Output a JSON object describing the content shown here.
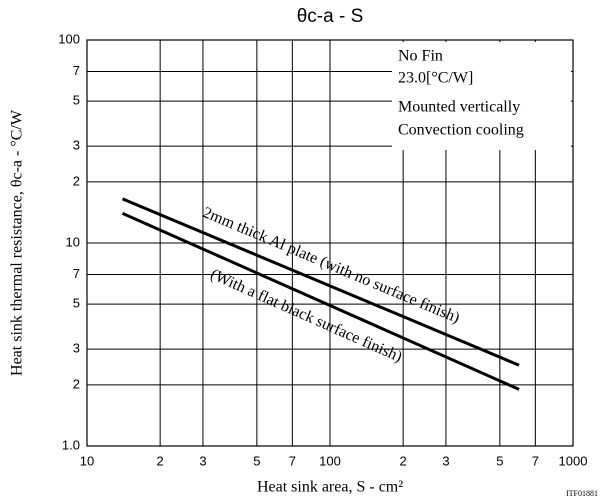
{
  "chart_data": {
    "type": "line",
    "title": "θc-a - S",
    "xlabel": "Heat sink area, S - cm²",
    "ylabel": "Heat sink thermal resistance, θc-a - °C/W",
    "xlog": true,
    "ylog": true,
    "grid": true,
    "xlim": [
      10,
      1000
    ],
    "ylim": [
      1,
      100
    ],
    "xticks": [
      10,
      {
        "value": 20,
        "label": "2"
      },
      {
        "value": 30,
        "label": "3"
      },
      {
        "value": 50,
        "label": "5"
      },
      {
        "value": 70,
        "label": "7"
      },
      100,
      {
        "value": 200,
        "label": "2"
      },
      {
        "value": 300,
        "label": "3"
      },
      {
        "value": 500,
        "label": "5"
      },
      {
        "value": 700,
        "label": "7"
      },
      1000
    ],
    "yticks": [
      {
        "value": 1,
        "label": "1.0"
      },
      {
        "value": 2,
        "label": "2"
      },
      {
        "value": 3,
        "label": "3"
      },
      {
        "value": 5,
        "label": "5"
      },
      {
        "value": 7,
        "label": "7"
      },
      10,
      {
        "value": 20,
        "label": "2"
      },
      {
        "value": 30,
        "label": "3"
      },
      {
        "value": 50,
        "label": "5"
      },
      {
        "value": 70,
        "label": "7"
      },
      100
    ],
    "annotations": [
      "No Fin",
      "23.0[°C/W]",
      "Mounted vertically",
      "Convection cooling"
    ],
    "figure_id": "ITF01881",
    "series": [
      {
        "name": "2mm thick Al plate (with no surface finish)",
        "color": "#000000",
        "x": [
          14,
          600
        ],
        "values": [
          16.5,
          2.5
        ]
      },
      {
        "name": "(With a flat black surface finish)",
        "color": "#000000",
        "x": [
          14,
          600
        ],
        "values": [
          14,
          1.9
        ]
      }
    ]
  }
}
